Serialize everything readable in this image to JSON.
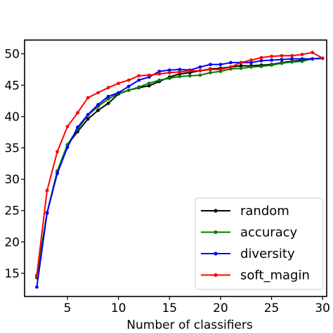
{
  "chart_data": {
    "type": "line",
    "title": "",
    "xlabel": "Number of classifiers",
    "ylabel": "",
    "xlim": [
      0.8,
      30.4
    ],
    "ylim": [
      11.3,
      52.2
    ],
    "x_ticks": [
      5,
      10,
      15,
      20,
      25,
      30
    ],
    "y_ticks": [
      15,
      20,
      25,
      30,
      35,
      40,
      45,
      50
    ],
    "y_tick_labels": [
      "15",
      "20",
      "25",
      "30",
      "35",
      "40",
      "45",
      "50"
    ],
    "grid": false,
    "legend_position": "bottom-right",
    "x": [
      2,
      3,
      4,
      5,
      6,
      7,
      8,
      9,
      10,
      11,
      12,
      13,
      14,
      15,
      16,
      17,
      18,
      19,
      20,
      21,
      22,
      23,
      24,
      25,
      26,
      27,
      28,
      29,
      30
    ],
    "series": [
      {
        "name": "random",
        "color": "#000000",
        "values": [
          14.3,
          24.6,
          31.2,
          35.5,
          37.6,
          39.6,
          41.0,
          42.1,
          43.6,
          44.2,
          44.6,
          44.9,
          45.6,
          46.3,
          46.8,
          47.0,
          47.3,
          47.6,
          47.7,
          47.9,
          48.1,
          48.1,
          48.2,
          48.3,
          48.6,
          48.8,
          49.0,
          49.2,
          49.3
        ]
      },
      {
        "name": "accuracy",
        "color": "#007f00",
        "values": [
          14.4,
          24.7,
          31.3,
          35.5,
          38.0,
          40.2,
          41.6,
          42.8,
          43.7,
          44.2,
          44.7,
          45.3,
          45.8,
          46.1,
          46.4,
          46.5,
          46.6,
          47.0,
          47.2,
          47.6,
          47.7,
          47.9,
          48.0,
          48.2,
          48.5,
          48.7,
          48.8,
          49.2,
          49.3
        ]
      },
      {
        "name": "diversity",
        "color": "#0000ff",
        "values": [
          12.8,
          24.6,
          30.9,
          35.1,
          38.3,
          40.3,
          41.9,
          43.2,
          43.8,
          44.8,
          45.8,
          46.3,
          47.2,
          47.4,
          47.5,
          47.4,
          47.9,
          48.3,
          48.3,
          48.6,
          48.6,
          48.6,
          48.9,
          49.0,
          49.1,
          49.2,
          49.2,
          49.2,
          49.3
        ]
      },
      {
        "name": "soft_magin",
        "color": "#ff0000",
        "values": [
          14.7,
          28.2,
          34.4,
          38.4,
          40.6,
          43.0,
          43.8,
          44.6,
          45.3,
          45.8,
          46.5,
          46.6,
          46.8,
          47.0,
          47.1,
          47.3,
          47.3,
          47.5,
          47.5,
          47.9,
          48.6,
          49.0,
          49.4,
          49.6,
          49.7,
          49.7,
          49.9,
          50.2,
          49.3
        ]
      }
    ]
  }
}
